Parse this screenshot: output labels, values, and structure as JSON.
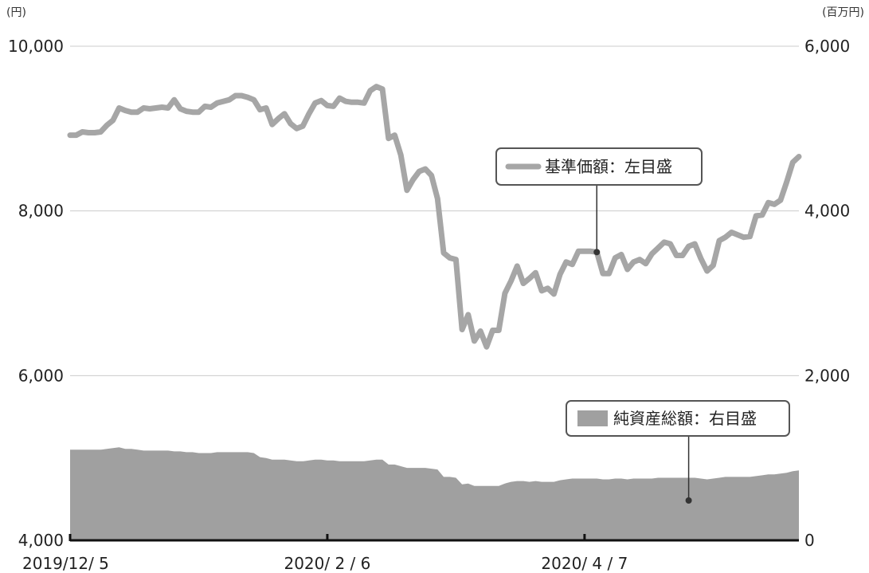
{
  "chart_data": {
    "type": "line+area",
    "left_unit": "(円)",
    "right_unit": "(百万円)",
    "left_ylim": [
      4000,
      10000
    ],
    "right_ylim": [
      0,
      6000
    ],
    "left_yticks": [
      "10,000",
      "8,000",
      "6,000",
      "4,000"
    ],
    "right_yticks": [
      "6,000",
      "4,000",
      "2,000",
      "0"
    ],
    "x_tick_labels": [
      "2019/12/ 5",
      "2020/ 2 / 6",
      "2020/ 4 / 7"
    ],
    "grid": true,
    "colors": {
      "nav_line": "#a6a6a6",
      "assets_area": "#a0a0a0",
      "grid": "#cccccc",
      "axis": "#111111",
      "legend_border": "#555555"
    },
    "series": [
      {
        "name": "基準価額：左目盛",
        "axis": "left",
        "kind": "line",
        "values": [
          8920,
          8920,
          8960,
          8950,
          8950,
          8960,
          9040,
          9100,
          9250,
          9220,
          9200,
          9200,
          9250,
          9240,
          9250,
          9260,
          9250,
          9350,
          9240,
          9210,
          9200,
          9200,
          9270,
          9260,
          9310,
          9330,
          9350,
          9400,
          9400,
          9380,
          9350,
          9230,
          9250,
          9050,
          9120,
          9180,
          9060,
          9000,
          9030,
          9180,
          9310,
          9340,
          9280,
          9270,
          9370,
          9330,
          9320,
          9320,
          9310,
          9460,
          9510,
          9480,
          8880,
          8920,
          8680,
          8250,
          8380,
          8480,
          8510,
          8430,
          8150,
          7490,
          7430,
          7410,
          6560,
          6740,
          6420,
          6540,
          6350,
          6550,
          6550,
          7000,
          7150,
          7330,
          7120,
          7180,
          7250,
          7030,
          7060,
          6990,
          7230,
          7380,
          7350,
          7510,
          7510,
          7510,
          7500,
          7240,
          7240,
          7430,
          7470,
          7290,
          7380,
          7410,
          7360,
          7480,
          7550,
          7620,
          7600,
          7460,
          7460,
          7570,
          7600,
          7420,
          7270,
          7340,
          7640,
          7680,
          7740,
          7710,
          7680,
          7690,
          7940,
          7950,
          8100,
          8080,
          8130,
          8350,
          8590,
          8660
        ]
      },
      {
        "name": "純資産総額：右目盛",
        "axis": "right",
        "kind": "area",
        "values": [
          1100,
          1100,
          1100,
          1100,
          1100,
          1100,
          1110,
          1120,
          1130,
          1110,
          1110,
          1100,
          1090,
          1090,
          1090,
          1090,
          1090,
          1080,
          1080,
          1070,
          1070,
          1060,
          1060,
          1060,
          1070,
          1070,
          1070,
          1070,
          1070,
          1070,
          1060,
          1010,
          1000,
          980,
          980,
          980,
          970,
          960,
          960,
          970,
          980,
          980,
          970,
          970,
          960,
          960,
          960,
          960,
          960,
          970,
          980,
          980,
          920,
          920,
          900,
          880,
          880,
          880,
          880,
          870,
          860,
          770,
          770,
          760,
          680,
          690,
          660,
          660,
          660,
          660,
          660,
          690,
          710,
          720,
          720,
          710,
          720,
          710,
          710,
          710,
          730,
          740,
          750,
          750,
          750,
          750,
          750,
          740,
          740,
          750,
          750,
          740,
          750,
          750,
          750,
          750,
          760,
          760,
          760,
          760,
          760,
          760,
          760,
          750,
          740,
          750,
          760,
          770,
          770,
          770,
          770,
          770,
          780,
          790,
          800,
          800,
          810,
          820,
          840,
          850
        ]
      }
    ],
    "annotations": [
      {
        "series": "基準価額：左目盛",
        "point_index": 86,
        "label_box_ref": "nav"
      },
      {
        "series": "純資産総額：右目盛",
        "point_index": 101,
        "label_box_ref": "assets"
      }
    ]
  }
}
